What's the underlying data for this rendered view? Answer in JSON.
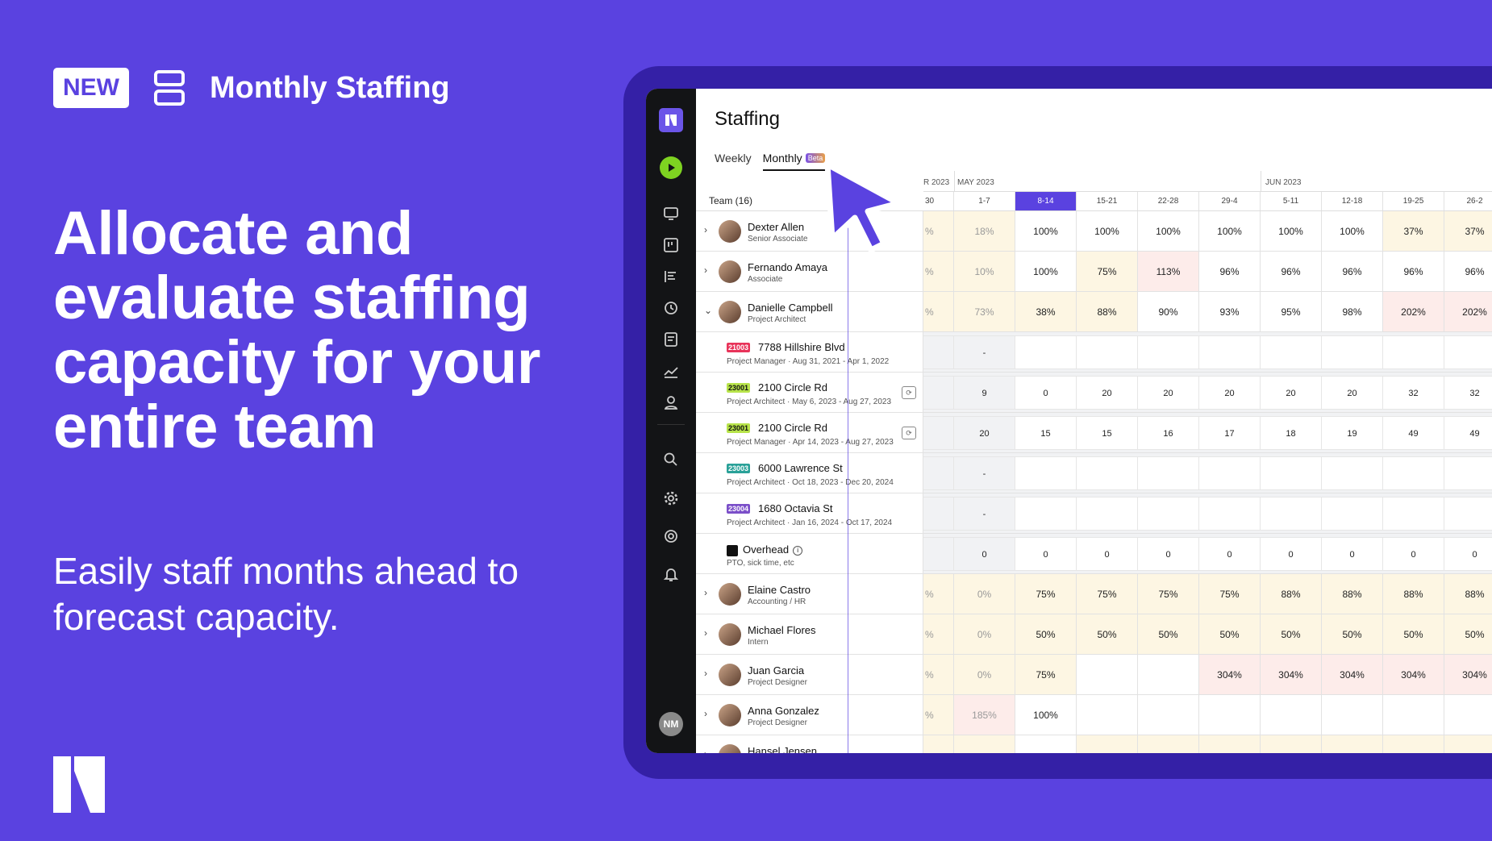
{
  "promo": {
    "new_badge": "NEW",
    "feature_title": "Monthly Staffing",
    "headline": "Allocate and evaluate staffing capacity for your entire team",
    "subline": "Easily staff months ahead to forecast capacity."
  },
  "colors": {
    "brand": "#5a42e0",
    "frame": "#3420a6",
    "sidebar": "#131416"
  },
  "sidebar": {
    "icons": [
      "monitor-icon",
      "board-icon",
      "gantt-icon",
      "clock-icon",
      "notes-icon",
      "trend-icon",
      "person-icon",
      "search-icon",
      "gear-icon",
      "help-icon",
      "bell-icon"
    ],
    "avatar_initials": "NM"
  },
  "app": {
    "title": "Staffing",
    "tabs": [
      {
        "label": "Weekly"
      },
      {
        "label": "Monthly",
        "badge": "Beta"
      }
    ],
    "team_header": "Team (16)",
    "months": [
      "R 2023",
      "MAY 2023",
      "JUN 2023"
    ],
    "weeks": [
      "30",
      "1-7",
      "8-14",
      "15-21",
      "22-28",
      "29-4",
      "5-11",
      "12-18",
      "19-25",
      "26-2"
    ],
    "rows": [
      {
        "type": "person",
        "name": "Dexter Allen",
        "role": "Senior Associate",
        "chev": "›",
        "cells": [
          "%",
          "18%",
          "100%",
          "100%",
          "100%",
          "100%",
          "100%",
          "100%",
          "37%",
          "37%"
        ],
        "bg": [
          "y",
          "y",
          "",
          "",
          "",
          "",
          "",
          "",
          "y",
          "y"
        ]
      },
      {
        "type": "person",
        "name": "Fernando Amaya",
        "role": "Associate",
        "chev": "›",
        "cells": [
          "%",
          "10%",
          "100%",
          "75%",
          "113%",
          "96%",
          "96%",
          "96%",
          "96%",
          "96%"
        ],
        "bg": [
          "y",
          "y",
          "",
          "y",
          "p",
          "",
          "",
          "",
          "",
          ""
        ]
      },
      {
        "type": "person",
        "name": "Danielle Campbell",
        "role": "Project Architect",
        "chev": "⌄",
        "cells": [
          "%",
          "73%",
          "38%",
          "88%",
          "90%",
          "93%",
          "95%",
          "98%",
          "202%",
          "202%"
        ],
        "bg": [
          "y",
          "y",
          "y",
          "y",
          "",
          "",
          "",
          "",
          "p",
          "p"
        ]
      },
      {
        "type": "project",
        "code": "21003",
        "code_color": "#e8345a",
        "title": "7788 Hillshire Blvd",
        "details": "Project Manager · Aug 31, 2021 - Apr 1, 2022",
        "cells": [
          "",
          "-",
          "",
          "",
          "",
          "",
          "",
          "",
          "",
          ""
        ]
      },
      {
        "type": "project",
        "code": "23001",
        "code_color": "#b7e34a",
        "title": "2100 Circle Rd",
        "details": "Project Architect · May 6, 2023 - Aug 27, 2023",
        "sync": "⟳",
        "cells": [
          "",
          "9",
          "0",
          "20",
          "20",
          "20",
          "20",
          "20",
          "32",
          "32"
        ]
      },
      {
        "type": "project",
        "code": "23001",
        "code_color": "#b7e34a",
        "title": "2100 Circle Rd",
        "details": "Project Manager · Apr 14, 2023 - Aug 27, 2023",
        "sync": "⟳",
        "cells": [
          "",
          "20",
          "15",
          "15",
          "16",
          "17",
          "18",
          "19",
          "49",
          "49"
        ]
      },
      {
        "type": "project",
        "code": "23003",
        "code_color": "#2aa198",
        "title": "6000 Lawrence St",
        "details": "Project Architect · Oct 18, 2023 - Dec 20, 2024",
        "cells": [
          "",
          "-",
          "",
          "",
          "",
          "",
          "",
          "",
          "",
          ""
        ]
      },
      {
        "type": "project",
        "code": "23004",
        "code_color": "#7b4fc9",
        "title": "1680 Octavia St",
        "details": "Project Architect · Jan 16, 2024 - Oct 17, 2024",
        "cells": [
          "",
          "-",
          "",
          "",
          "",
          "",
          "",
          "",
          "",
          ""
        ]
      },
      {
        "type": "overhead",
        "title": "Overhead",
        "details": "PTO, sick time, etc",
        "cells": [
          "",
          "0",
          "0",
          "0",
          "0",
          "0",
          "0",
          "0",
          "0",
          "0"
        ]
      },
      {
        "type": "person",
        "name": "Elaine Castro",
        "role": "Accounting / HR",
        "chev": "›",
        "cells": [
          "%",
          "0%",
          "75%",
          "75%",
          "75%",
          "75%",
          "88%",
          "88%",
          "88%",
          "88%"
        ],
        "bg": [
          "y",
          "y",
          "y",
          "y",
          "y",
          "y",
          "y",
          "y",
          "y",
          "y"
        ]
      },
      {
        "type": "person",
        "name": "Michael Flores",
        "role": "Intern",
        "chev": "›",
        "cells": [
          "%",
          "0%",
          "50%",
          "50%",
          "50%",
          "50%",
          "50%",
          "50%",
          "50%",
          "50%"
        ],
        "bg": [
          "y",
          "y",
          "y",
          "y",
          "y",
          "y",
          "y",
          "y",
          "y",
          "y"
        ]
      },
      {
        "type": "person",
        "name": "Juan Garcia",
        "role": "Project Designer",
        "chev": "›",
        "cells": [
          "%",
          "0%",
          "75%",
          "",
          "",
          "304%",
          "304%",
          "304%",
          "304%",
          "304%"
        ],
        "bg": [
          "y",
          "y",
          "y",
          "",
          "",
          "p",
          "p",
          "p",
          "p",
          "p"
        ]
      },
      {
        "type": "person",
        "name": "Anna Gonzalez",
        "role": "Project Designer",
        "chev": "›",
        "cells": [
          "%",
          "185%",
          "100%",
          "",
          "",
          "",
          "",
          "",
          "",
          ""
        ],
        "bg": [
          "y",
          "p",
          "",
          "",
          "",
          "",
          "",
          "",
          "",
          ""
        ]
      },
      {
        "type": "person",
        "name": "Hansel Jensen",
        "role": "",
        "chev": "›",
        "cells": [
          "",
          "",
          "",
          "",
          "",
          "",
          "",
          "",
          "",
          ""
        ],
        "bg": [
          "y",
          "y",
          "",
          "y",
          "y",
          "y",
          "y",
          "y",
          "y",
          "y"
        ]
      }
    ]
  }
}
